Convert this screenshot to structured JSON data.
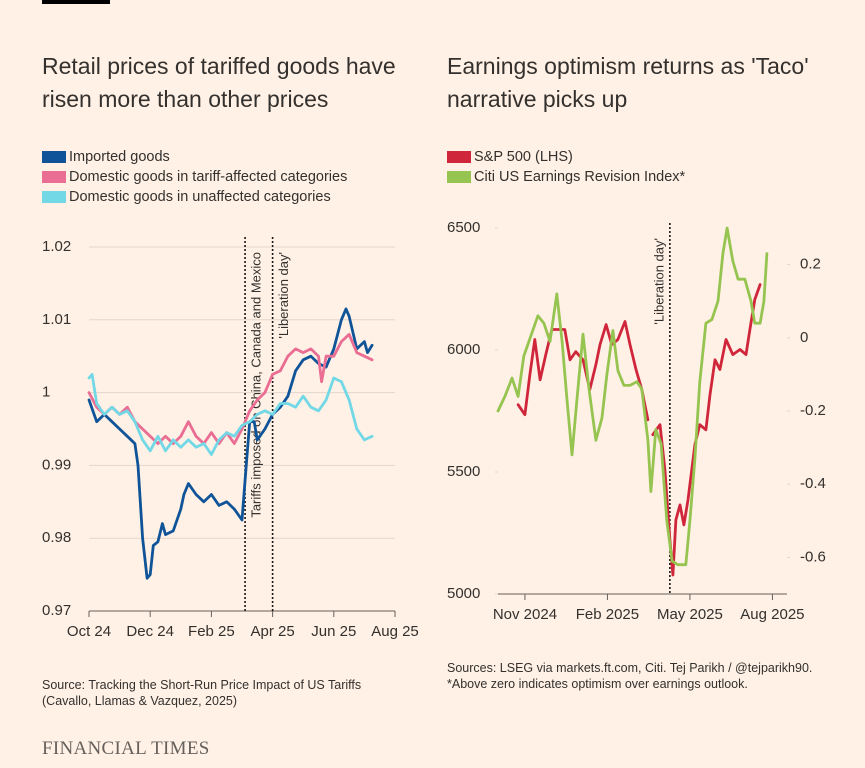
{
  "chart_data": [
    {
      "type": "line",
      "title": "Retail prices of tariffed goods have risen more than other prices",
      "series": [
        {
          "name": "Imported goods",
          "color": "#0f5499",
          "x": [
            0,
            0.25,
            0.5,
            0.75,
            1,
            1.25,
            1.5,
            1.6,
            1.75,
            1.9,
            2,
            2.1,
            2.25,
            2.4,
            2.5,
            2.75,
            3,
            3.1,
            3.25,
            3.5,
            3.75,
            4,
            4.25,
            4.5,
            4.75,
            5,
            5.1,
            5.25,
            5.4,
            5.5,
            5.75,
            6,
            6.25,
            6.5,
            6.75,
            7,
            7.25,
            7.5,
            7.75,
            8,
            8.25,
            8.4,
            8.5,
            8.75,
            9,
            9.1,
            9.25
          ],
          "values": [
            0.999,
            0.996,
            0.997,
            0.996,
            0.995,
            0.994,
            0.993,
            0.99,
            0.98,
            0.9745,
            0.975,
            0.979,
            0.9795,
            0.982,
            0.9805,
            0.981,
            0.984,
            0.986,
            0.9875,
            0.986,
            0.985,
            0.986,
            0.9845,
            0.985,
            0.984,
            0.9825,
            0.988,
            0.996,
            0.996,
            0.9935,
            0.995,
            0.997,
            0.998,
            0.9995,
            1.003,
            1.0045,
            1.005,
            1.004,
            1.0035,
            1.006,
            1.01,
            1.0115,
            1.0105,
            1.006,
            1.007,
            1.0055,
            1.0065
          ]
        },
        {
          "name": "Domestic goods in tariff-affected categories",
          "color": "#ea6d93",
          "x": [
            0,
            0.25,
            0.5,
            0.75,
            1,
            1.25,
            1.5,
            1.75,
            2,
            2.25,
            2.5,
            2.75,
            3,
            3.25,
            3.5,
            3.75,
            4,
            4.25,
            4.5,
            4.75,
            5,
            5.25,
            5.5,
            5.75,
            6,
            6.25,
            6.5,
            6.75,
            7,
            7.25,
            7.5,
            7.6,
            7.75,
            8,
            8.25,
            8.5,
            8.75,
            9,
            9.25
          ],
          "values": [
            1.0,
            0.998,
            0.997,
            0.998,
            0.997,
            0.998,
            0.996,
            0.995,
            0.994,
            0.993,
            0.994,
            0.993,
            0.994,
            0.996,
            0.994,
            0.993,
            0.9945,
            0.993,
            0.9945,
            0.993,
            0.995,
            0.9975,
            0.999,
            1.0,
            1.0025,
            1.003,
            1.005,
            1.006,
            1.0055,
            1.006,
            1.005,
            1.0015,
            1.005,
            1.005,
            1.007,
            1.008,
            1.0055,
            1.005,
            1.0045
          ]
        },
        {
          "name": "Domestic goods in unaffected categories",
          "color": "#73d8e6",
          "x": [
            0,
            0.1,
            0.25,
            0.5,
            0.75,
            1,
            1.25,
            1.5,
            1.75,
            2,
            2.25,
            2.5,
            2.75,
            3,
            3.25,
            3.5,
            3.75,
            4,
            4.25,
            4.5,
            4.75,
            5,
            5.25,
            5.5,
            5.75,
            6,
            6.25,
            6.5,
            6.75,
            7,
            7.25,
            7.5,
            7.75,
            8,
            8.25,
            8.5,
            8.75,
            9,
            9.25
          ],
          "values": [
            1.002,
            1.0025,
            0.9985,
            0.997,
            0.998,
            0.997,
            0.9975,
            0.996,
            0.9935,
            0.992,
            0.994,
            0.992,
            0.9935,
            0.9925,
            0.9935,
            0.9925,
            0.993,
            0.9915,
            0.9935,
            0.9945,
            0.994,
            0.9955,
            0.996,
            0.997,
            0.9975,
            0.997,
            0.9985,
            0.9985,
            0.998,
            0.9995,
            0.998,
            0.9975,
            0.999,
            1.002,
            1.0015,
            0.999,
            0.995,
            0.9935,
            0.994
          ]
        }
      ],
      "xlim": [
        0,
        10
      ],
      "xticks": [
        {
          "value": 0,
          "label": "Oct 24"
        },
        {
          "value": 2,
          "label": "Dec 24"
        },
        {
          "value": 4,
          "label": "Feb 25"
        },
        {
          "value": 6,
          "label": "Apr 25"
        },
        {
          "value": 8,
          "label": "Jun 25"
        },
        {
          "value": 10,
          "label": "Aug 25"
        }
      ],
      "ylim": [
        0.97,
        1.02
      ],
      "yticks": [
        0.97,
        0.98,
        0.99,
        1,
        1.01,
        1.02
      ],
      "grid": true,
      "annotations": [
        {
          "x": 5.1,
          "text": "Tariffs imposed on China, Canada and Mexico"
        },
        {
          "x": 6,
          "text": "'Liberation day'"
        }
      ],
      "source": "Source: Tracking the Short-Run Price Impact of US Tariffs (Cavallo, Llamas & Vazquez, 2025)"
    },
    {
      "type": "line",
      "title": "Earnings optimism returns as 'Taco' narrative picks up",
      "series": [
        {
          "name": "S&P 500 (LHS)",
          "color": "#d0263c",
          "x": [
            -0.25,
            0,
            0.18,
            0.36,
            0.55,
            0.76,
            0.98,
            1.45,
            1.64,
            1.85,
            2.11,
            2.36,
            2.58,
            2.73,
            2.95,
            3.16,
            3.38,
            3.64,
            3.82,
            4.04,
            4.25,
            4.47,
            4.56,
            4.65,
            4.91,
            5.09,
            5.27,
            5.38,
            5.49,
            5.64,
            5.78,
            5.93,
            6.18,
            6.36,
            6.58,
            6.73,
            6.91,
            7.09,
            7.31,
            7.56,
            7.82,
            8.04,
            8.18,
            8.36,
            8.55
          ],
          "values": [
            5776,
            5735,
            5900,
            6043,
            5878,
            5981,
            6084,
            6084,
            5960,
            5993,
            5960,
            5838,
            5940,
            6022,
            6104,
            6022,
            6043,
            6117,
            6022,
            5920,
            5838,
            5714,
            null,
            5653,
            5694,
            5509,
            5222,
            5078,
            5304,
            5365,
            5283,
            5386,
            5612,
            5694,
            5673,
            5817,
            5960,
            5920,
            6043,
            5981,
            6002,
            5981,
            6084,
            6207,
            6268
          ]
        },
        {
          "name": "Citi US Earnings Revision Index*",
          "color": "#96c450",
          "axis": "y2",
          "x": [
            -0.98,
            -0.73,
            -0.47,
            -0.25,
            -0.04,
            0.47,
            0.69,
            0.91,
            1.16,
            1.35,
            1.53,
            1.71,
            1.89,
            2.11,
            2.33,
            2.58,
            2.8,
            2.98,
            3.2,
            3.38,
            3.6,
            3.82,
            4.07,
            4.25,
            4.47,
            4.58,
            4.76,
            4.95,
            5.16,
            5.35,
            5.56,
            5.85,
            6,
            6.18,
            6.36,
            6.58,
            6.8,
            7.02,
            7.2,
            7.35,
            7.56,
            7.75,
            8,
            8.22,
            8.36,
            8.55,
            8.69,
            8.8
          ],
          "values": [
            -0.2,
            -0.16,
            -0.11,
            -0.16,
            -0.05,
            0.06,
            0.04,
            -0.01,
            0.12,
            -0.01,
            -0.17,
            -0.32,
            -0.17,
            0.01,
            -0.14,
            -0.28,
            -0.22,
            -0.1,
            0.02,
            -0.09,
            -0.13,
            -0.13,
            -0.12,
            -0.14,
            -0.28,
            -0.42,
            -0.25,
            -0.29,
            -0.5,
            -0.61,
            -0.62,
            -0.62,
            -0.5,
            -0.33,
            -0.12,
            0.04,
            0.05,
            0.1,
            0.23,
            0.3,
            0.21,
            0.16,
            0.16,
            0.1,
            0.04,
            0.04,
            0.1,
            0.23
          ]
        }
      ],
      "xlim": [
        -0.98,
        9.53
      ],
      "xticks": [
        {
          "value": 0,
          "label": "Nov 2024"
        },
        {
          "value": 3,
          "label": "Feb 2025"
        },
        {
          "value": 6,
          "label": "May 2025"
        },
        {
          "value": 9,
          "label": "Aug 2025"
        }
      ],
      "ylim": [
        5000,
        6500
      ],
      "yticks": [
        5000,
        5500,
        6000,
        6500
      ],
      "y2lim": [
        -0.7,
        0.3
      ],
      "y2ticks": [
        -0.6,
        -0.4,
        -0.2,
        0,
        0.2
      ],
      "grid": false,
      "annotations": [
        {
          "x": 5.27,
          "text": "'Liberation day'"
        }
      ],
      "source": "Sources: LSEG via markets.ft.com, Citi. Tej Parikh / @tejparikh90. *Above zero indicates optimism over earnings outlook."
    }
  ],
  "brand": "FINANCIAL TIMES"
}
